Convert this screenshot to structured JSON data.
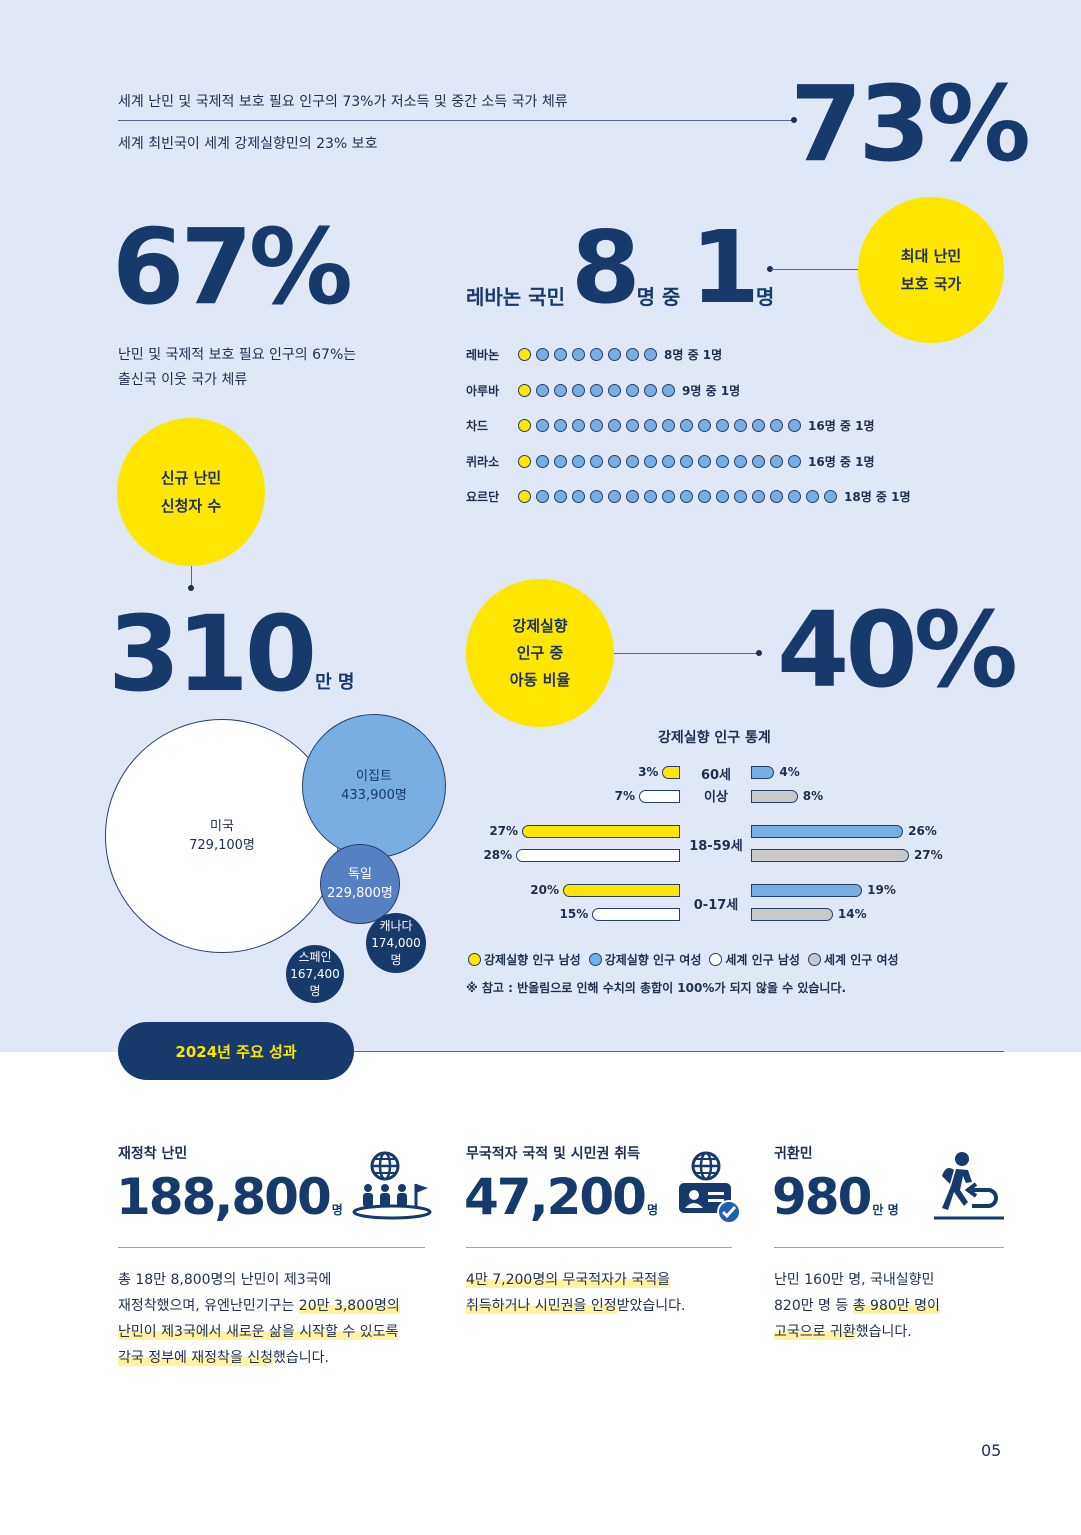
{
  "top": {
    "line1": "세계 난민 및 국제적 보호 필요 인구의 73%가 저소득 및 중간 소득 국가 체류",
    "line2": "세계 최빈국이 세계 강제실향민의 23% 보호",
    "big": "73%"
  },
  "neighbor": {
    "big": "67%",
    "desc1": "난민 및 국제적 보호 필요 인구의 67%는",
    "desc2": "출신국 이웃 국가 체류"
  },
  "lebanon": {
    "prefix": "레바논 국민",
    "num1": "8",
    "mid": "명 중",
    "num2": "1",
    "suffix": "명",
    "circle_line1": "최대 난민",
    "circle_line2": "보호 국가"
  },
  "ratio_rows": [
    {
      "country": "레바논",
      "total": 8,
      "label": "8명 중 1명"
    },
    {
      "country": "아루바",
      "total": 9,
      "label": "9명 중 1명"
    },
    {
      "country": "차드",
      "total": 16,
      "label": "16명 중 1명"
    },
    {
      "country": "퀴라소",
      "total": 16,
      "label": "16명 중 1명"
    },
    {
      "country": "요르단",
      "total": 18,
      "label": "18명 중 1명"
    }
  ],
  "applicants": {
    "circle_line1": "신규 난민",
    "circle_line2": "신청자 수",
    "big": "310",
    "unit": "만 명"
  },
  "bubbles": [
    {
      "name": "미국",
      "value": "729,100명"
    },
    {
      "name": "이집트",
      "value": "433,900명"
    },
    {
      "name": "독일",
      "value": "229,800명"
    },
    {
      "name": "캐나다",
      "value": "174,000명"
    },
    {
      "name": "스페인",
      "value": "167,400명"
    }
  ],
  "children": {
    "circle_line1": "강제실향",
    "circle_line2": "인구 중",
    "circle_line3": "아동 비율",
    "big": "40%"
  },
  "chart_data": {
    "type": "bar",
    "title": "강제실향 인구 통계",
    "categories": [
      "60세 이상",
      "18-59세",
      "0-17세"
    ],
    "category_display": [
      [
        "60세",
        "이상"
      ],
      [
        "18-59세"
      ],
      [
        "0-17세"
      ]
    ],
    "series": [
      {
        "name": "강제실향 인구 남성",
        "values": [
          3,
          27,
          20
        ],
        "labels": [
          "3%",
          "27%",
          "20%"
        ],
        "color": "#ffe600"
      },
      {
        "name": "세계 인구 남성",
        "values": [
          7,
          28,
          15
        ],
        "labels": [
          "7%",
          "28%",
          "15%"
        ],
        "color": "#ffffff"
      },
      {
        "name": "강제실향 인구 여성",
        "values": [
          4,
          26,
          19
        ],
        "labels": [
          "4%",
          "26%",
          "19%"
        ],
        "color": "#79aee2"
      },
      {
        "name": "세계 인구 여성",
        "values": [
          8,
          27,
          14
        ],
        "labels": [
          "8%",
          "27%",
          "14%"
        ],
        "color": "#c9c9c9"
      }
    ],
    "note": "※ 참고 : 반올림으로 인해 수치의 총합이 100%가 되지 않을 수 있습니다."
  },
  "achievements": {
    "pill": "2024년 주요 성과",
    "resettled": {
      "title": "재정착 난민",
      "num": "188,800",
      "unit": "명",
      "desc1": "총 18만 8,800명의 난민이 제3국에",
      "desc2a": "재정착했으며, 유엔난민기구는 ",
      "desc2b": "20만 3,800명의",
      "desc3": "난민이 제3국에서 새로운 삶을 시작할 수 있도록",
      "desc4a": "각국 정부에 재정착을 신청",
      "desc4b": "했습니다."
    },
    "stateless": {
      "title": "무국적자 국적 및 시민권 취득",
      "num": "47,200",
      "unit": "명",
      "desc1": "4만 7,200명의 무국적자가 국적을",
      "desc2a": "취득하거나 시민권을 인정",
      "desc2b": "받았습니다."
    },
    "returnees": {
      "title": "귀환민",
      "num": "980",
      "unit": "만 명",
      "desc1": "난민 160만 명, 국내실향민",
      "desc2a": "820만 명 등 ",
      "desc2b": "총 980만 명이",
      "desc3a": "고국으로 귀환",
      "desc3b": "했습니다."
    }
  },
  "page_number": "05"
}
